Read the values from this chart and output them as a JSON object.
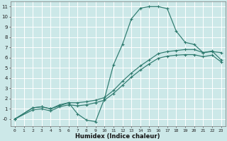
{
  "xlabel": "Humidex (Indice chaleur)",
  "bg_color": "#cce8e8",
  "grid_color": "#ffffff",
  "line_color": "#2d7a6e",
  "marker": "+",
  "xlim": [
    -0.5,
    23.5
  ],
  "ylim": [
    -0.7,
    11.5
  ],
  "xticks": [
    0,
    1,
    2,
    3,
    4,
    5,
    6,
    7,
    8,
    9,
    10,
    11,
    12,
    13,
    14,
    15,
    16,
    17,
    18,
    19,
    20,
    21,
    22,
    23
  ],
  "yticks": [
    0,
    1,
    2,
    3,
    4,
    5,
    6,
    7,
    8,
    9,
    10,
    11
  ],
  "ytick_labels": [
    "-0",
    "1",
    "2",
    "3",
    "4",
    "5",
    "6",
    "7",
    "8",
    "9",
    "10",
    "11"
  ],
  "lines": [
    {
      "x": [
        0,
        2,
        3,
        4,
        6,
        7,
        8,
        9,
        10,
        11,
        12,
        13,
        14,
        15,
        16,
        17,
        18,
        19,
        20,
        21,
        22,
        23
      ],
      "y": [
        0,
        1.1,
        1.2,
        1.0,
        1.6,
        0.5,
        -0.1,
        -0.25,
        2.0,
        5.3,
        7.3,
        9.8,
        10.85,
        11.0,
        11.0,
        10.8,
        8.6,
        7.5,
        7.3,
        6.5,
        6.6,
        6.5
      ]
    },
    {
      "x": [
        0,
        2,
        3,
        4,
        5,
        6,
        7,
        8,
        9,
        10,
        11,
        12,
        13,
        14,
        15,
        16,
        17,
        18,
        19,
        20,
        21,
        22,
        23
      ],
      "y": [
        0,
        1.1,
        1.2,
        1.0,
        1.4,
        1.6,
        1.6,
        1.7,
        1.85,
        2.1,
        2.8,
        3.7,
        4.5,
        5.2,
        5.8,
        6.4,
        6.6,
        6.7,
        6.8,
        6.8,
        6.5,
        6.65,
        5.8
      ]
    },
    {
      "x": [
        0,
        2,
        3,
        4,
        5,
        6,
        7,
        8,
        9,
        10,
        11,
        12,
        13,
        14,
        15,
        16,
        17,
        18,
        19,
        20,
        21,
        22,
        23
      ],
      "y": [
        0,
        0.9,
        1.0,
        0.8,
        1.2,
        1.4,
        1.3,
        1.4,
        1.6,
        1.85,
        2.5,
        3.3,
        4.1,
        4.8,
        5.4,
        5.95,
        6.15,
        6.25,
        6.3,
        6.3,
        6.1,
        6.25,
        5.6
      ]
    }
  ]
}
